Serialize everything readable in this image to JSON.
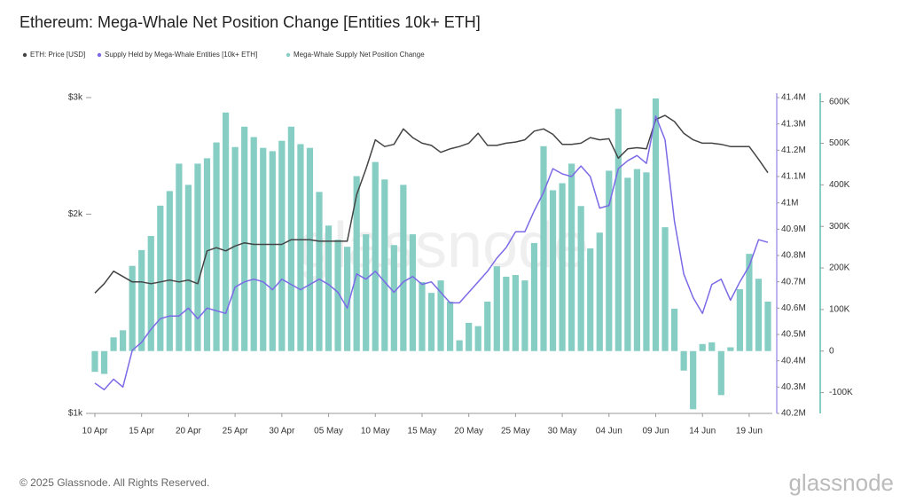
{
  "chart_data": {
    "type": "combo",
    "title": "Ethereum: Mega-Whale Net Position Change [Entities 10k+ ETH]",
    "watermark": "glassnode",
    "footer": "© 2025 Glassnode. All Rights Reserved.",
    "logo": "glassnode",
    "categories": [
      "10 Apr",
      null,
      null,
      null,
      null,
      "15 Apr",
      null,
      null,
      null,
      null,
      "20 Apr",
      null,
      null,
      null,
      null,
      "25 Apr",
      null,
      null,
      null,
      null,
      "30 Apr",
      null,
      null,
      null,
      null,
      "05 May",
      null,
      null,
      null,
      null,
      "10 May",
      null,
      null,
      null,
      null,
      "15 May",
      null,
      null,
      null,
      null,
      "20 May",
      null,
      null,
      null,
      null,
      "25 May",
      null,
      null,
      null,
      null,
      "30 May",
      null,
      null,
      null,
      null,
      "04 Jun",
      null,
      null,
      null,
      null,
      "09 Jun",
      null,
      null,
      null,
      null,
      "14 Jun",
      null,
      null,
      null,
      null,
      "19 Jun",
      null,
      null
    ],
    "ylim": [
      1000,
      3000
    ],
    "ylog": true,
    "yticks": [
      {
        "value": 1000,
        "label": "$1k"
      },
      {
        "value": 2000,
        "label": "$2k"
      },
      {
        "value": 3000,
        "label": "$3k"
      }
    ],
    "y2lim": [
      40200000,
      41400000
    ],
    "y2ticks": [
      {
        "value": 40200000,
        "label": "40.2M"
      },
      {
        "value": 40300000,
        "label": "40.3M"
      },
      {
        "value": 40400000,
        "label": "40.4M"
      },
      {
        "value": 40500000,
        "label": "40.5M"
      },
      {
        "value": 40600000,
        "label": "40.6M"
      },
      {
        "value": 40700000,
        "label": "40.7M"
      },
      {
        "value": 40800000,
        "label": "40.8M"
      },
      {
        "value": 40900000,
        "label": "40.9M"
      },
      {
        "value": 41000000,
        "label": "41M"
      },
      {
        "value": 41100000,
        "label": "41.1M"
      },
      {
        "value": 41200000,
        "label": "41.2M"
      },
      {
        "value": 41300000,
        "label": "41.3M"
      },
      {
        "value": 41400000,
        "label": "41.4M"
      }
    ],
    "y3lim": [
      -150000,
      610000
    ],
    "y3ticks": [
      {
        "value": -100000,
        "label": "-100K"
      },
      0,
      {
        "value": 100000,
        "label": "100K"
      },
      {
        "value": 200000,
        "label": "200K"
      },
      {
        "value": 300000,
        "label": "300K"
      },
      {
        "value": 400000,
        "label": "400K"
      },
      {
        "value": 500000,
        "label": "500K"
      },
      {
        "value": 600000,
        "label": "600K"
      }
    ],
    "series": [
      {
        "name": "ETH: Price [USD]",
        "type": "line",
        "axis": "y",
        "color": "#444444",
        "values": [
          1520,
          1570,
          1640,
          1610,
          1580,
          1580,
          1570,
          1580,
          1590,
          1580,
          1590,
          1570,
          1760,
          1780,
          1760,
          1790,
          1810,
          1800,
          1800,
          1800,
          1800,
          1830,
          1830,
          1830,
          1820,
          1820,
          1820,
          1820,
          2140,
          2340,
          2590,
          2530,
          2550,
          2690,
          2610,
          2560,
          2540,
          2480,
          2510,
          2530,
          2560,
          2650,
          2540,
          2540,
          2560,
          2570,
          2590,
          2670,
          2690,
          2640,
          2550,
          2550,
          2560,
          2610,
          2590,
          2600,
          2430,
          2510,
          2520,
          2510,
          2780,
          2820,
          2760,
          2650,
          2590,
          2560,
          2560,
          2550,
          2530,
          2530,
          2530,
          2420,
          2310
        ]
      },
      {
        "name": "Supply Held by Mega-Whale Entities [10k+ ETH]",
        "type": "line",
        "axis": "y2",
        "color": "#7b6ae6",
        "values": [
          40315000,
          40290000,
          40330000,
          40300000,
          40440000,
          40470000,
          40520000,
          40560000,
          40570000,
          40570000,
          40600000,
          40560000,
          40600000,
          40590000,
          40580000,
          40680000,
          40700000,
          40710000,
          40700000,
          40670000,
          40710000,
          40690000,
          40670000,
          40690000,
          40710000,
          40690000,
          40660000,
          40600000,
          40730000,
          40710000,
          40740000,
          40700000,
          40660000,
          40700000,
          40720000,
          40690000,
          40700000,
          40660000,
          40620000,
          40620000,
          40660000,
          40700000,
          40740000,
          40790000,
          40830000,
          40890000,
          40890000,
          40970000,
          41040000,
          41130000,
          41110000,
          41100000,
          41140000,
          41100000,
          40980000,
          40990000,
          41130000,
          41160000,
          41180000,
          41150000,
          41330000,
          41240000,
          40930000,
          40730000,
          40640000,
          40580000,
          40690000,
          40710000,
          40630000,
          40700000,
          40760000,
          40860000,
          40850000
        ]
      },
      {
        "name": "Mega-Whale Supply Net Position Change",
        "type": "bar",
        "axis": "y3",
        "color": "#86cdc4",
        "values": [
          -50000,
          -55000,
          33000,
          50000,
          205000,
          243000,
          277000,
          350000,
          385000,
          451000,
          400000,
          451000,
          464000,
          502000,
          574000,
          491000,
          540000,
          515000,
          489000,
          481000,
          506000,
          540000,
          498000,
          489000,
          383000,
          302000,
          268000,
          251000,
          421000,
          281000,
          455000,
          413000,
          255000,
          400000,
          281000,
          166000,
          140000,
          170000,
          119000,
          26000,
          68000,
          60000,
          119000,
          204000,
          179000,
          183000,
          170000,
          260000,
          493000,
          387000,
          404000,
          451000,
          349000,
          247000,
          285000,
          434000,
          583000,
          417000,
          438000,
          430000,
          608000,
          298000,
          102000,
          -47000,
          -140000,
          17000,
          21000,
          -106000,
          9000,
          149000,
          234000,
          174000,
          119000
        ]
      }
    ]
  }
}
